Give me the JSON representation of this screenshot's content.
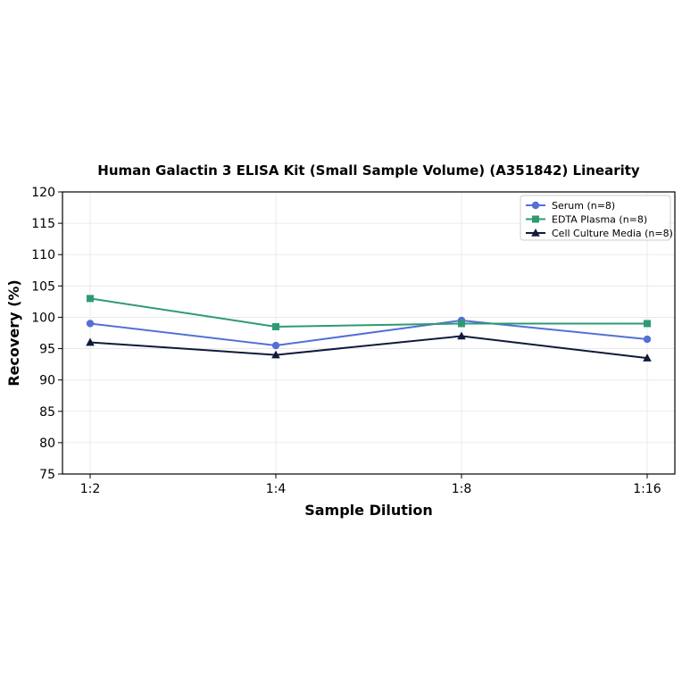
{
  "chart_data": {
    "type": "line",
    "title": "Human Galactin 3 ELISA Kit (Small Sample Volume) (A351842) Linearity",
    "xlabel": "Sample Dilution",
    "ylabel": "Recovery (%)",
    "categories": [
      "1:2",
      "1:4",
      "1:8",
      "1:16"
    ],
    "ylim": [
      75,
      120
    ],
    "yticks": [
      75,
      80,
      85,
      90,
      95,
      100,
      105,
      110,
      115,
      120
    ],
    "grid": true,
    "legend_position": "top-right",
    "series": [
      {
        "name": "Serum (n=8)",
        "values": [
          99.0,
          95.5,
          99.5,
          96.5
        ],
        "color": "#5470d6",
        "marker": "circle"
      },
      {
        "name": "EDTA Plasma (n=8)",
        "values": [
          103.0,
          98.5,
          99.0,
          99.0
        ],
        "color": "#2e9a73",
        "marker": "square"
      },
      {
        "name": "Cell Culture Media (n=8)",
        "values": [
          96.0,
          94.0,
          97.0,
          93.5
        ],
        "color": "#111a3a",
        "marker": "triangle"
      }
    ]
  }
}
